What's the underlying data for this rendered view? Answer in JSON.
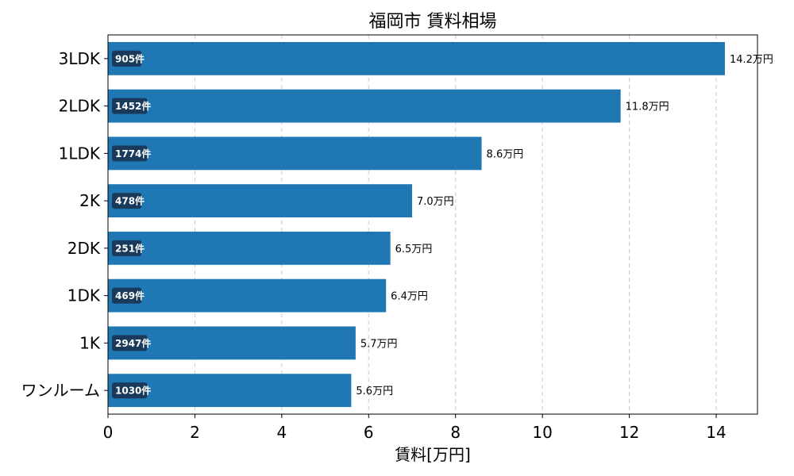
{
  "chart_data": {
    "type": "bar",
    "orientation": "horizontal",
    "title": "福岡市 賃料相場",
    "xlabel": "賃料[万円]",
    "ylabel": "",
    "xlim": [
      0,
      14.95
    ],
    "xticks": [
      0,
      2,
      4,
      6,
      8,
      10,
      12,
      14
    ],
    "grid": "x-dashed",
    "categories": [
      "3LDK",
      "2LDK",
      "1LDK",
      "2K",
      "2DK",
      "1DK",
      "1K",
      "ワンルーム"
    ],
    "values": [
      14.2,
      11.8,
      8.6,
      7.0,
      6.5,
      6.4,
      5.7,
      5.6
    ],
    "value_labels": [
      "14.2万円",
      "11.8万円",
      "8.6万円",
      "7.0万円",
      "6.5万円",
      "6.4万円",
      "5.7万円",
      "5.6万円"
    ],
    "count_labels": [
      "905件",
      "1452件",
      "1774件",
      "478件",
      "251件",
      "469件",
      "2947件",
      "1030件"
    ],
    "colors": {
      "bar": "#1f77b4",
      "count_badge": "#1a3a5c",
      "grid": "#c8c8c8"
    }
  }
}
